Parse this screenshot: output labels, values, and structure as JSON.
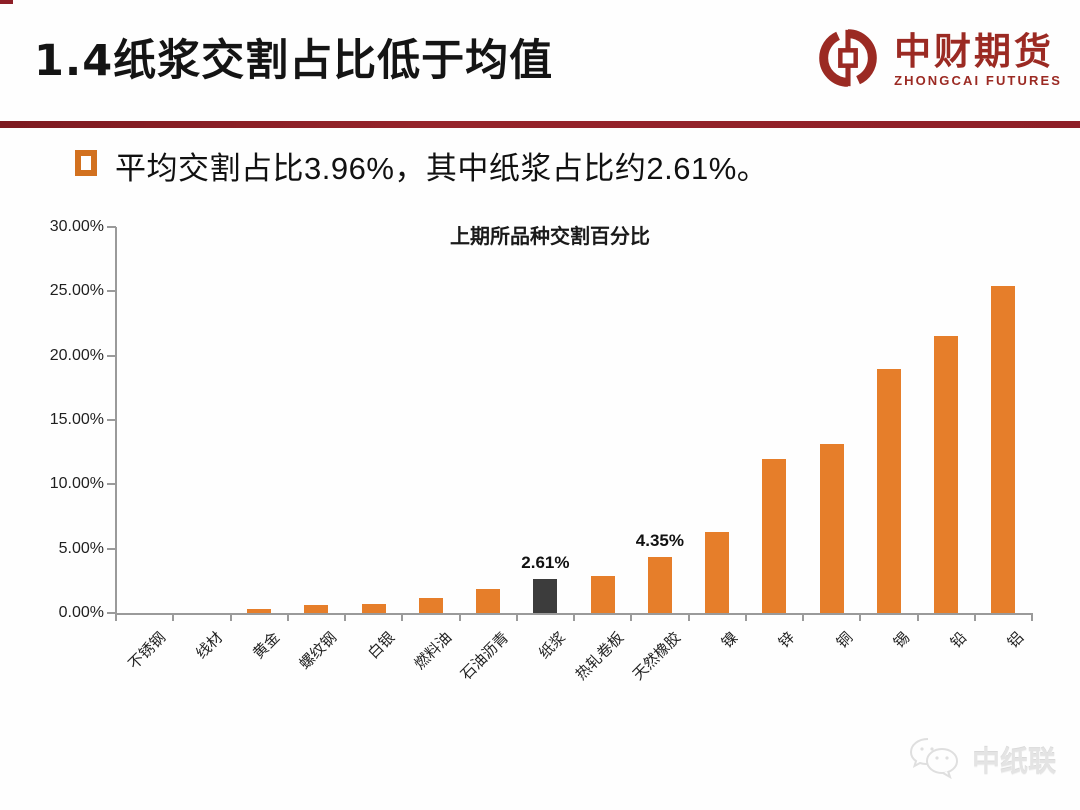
{
  "header": {
    "title": "1.4纸浆交割占比低于均值",
    "logo": {
      "name_cn": "中财期货",
      "name_en": "ZHONGCAI FUTURES",
      "color": "#9b2a23"
    },
    "divider_color": "#8e1f27"
  },
  "bullet": {
    "marker_color": "#d2711f",
    "text": "平均交割占比3.96%，其中纸浆占比约2.61%。"
  },
  "chart_data": {
    "type": "bar",
    "title": "上期所品种交割百分比",
    "categories": [
      "不锈钢",
      "线材",
      "黄金",
      "螺纹钢",
      "白银",
      "燃料油",
      "石油沥青",
      "纸浆",
      "热轧卷板",
      "天然橡胶",
      "镍",
      "锌",
      "铜",
      "锡",
      "铅",
      "铝"
    ],
    "values": [
      0,
      0,
      0.3,
      0.6,
      0.7,
      1.2,
      1.9,
      2.61,
      2.9,
      4.35,
      6.3,
      12.0,
      13.1,
      19.0,
      21.5,
      25.4
    ],
    "highlight_category": "纸浆",
    "highlight_index": 7,
    "bar_color": "#e67e2a",
    "highlight_color": "#3c3c3c",
    "axis_color": "#9a9a9a",
    "ylim": [
      0,
      30
    ],
    "ytick_labels": [
      "0.00%",
      "5.00%",
      "10.00%",
      "15.00%",
      "20.00%",
      "25.00%",
      "30.00%"
    ],
    "annotations": [
      {
        "category": "纸浆",
        "text": "2.61%"
      },
      {
        "category": "天然橡胶",
        "text": "4.35%"
      }
    ],
    "grid": false,
    "legend": "none",
    "xlabel": "",
    "ylabel": ""
  },
  "watermark": {
    "text": "中纸联"
  }
}
